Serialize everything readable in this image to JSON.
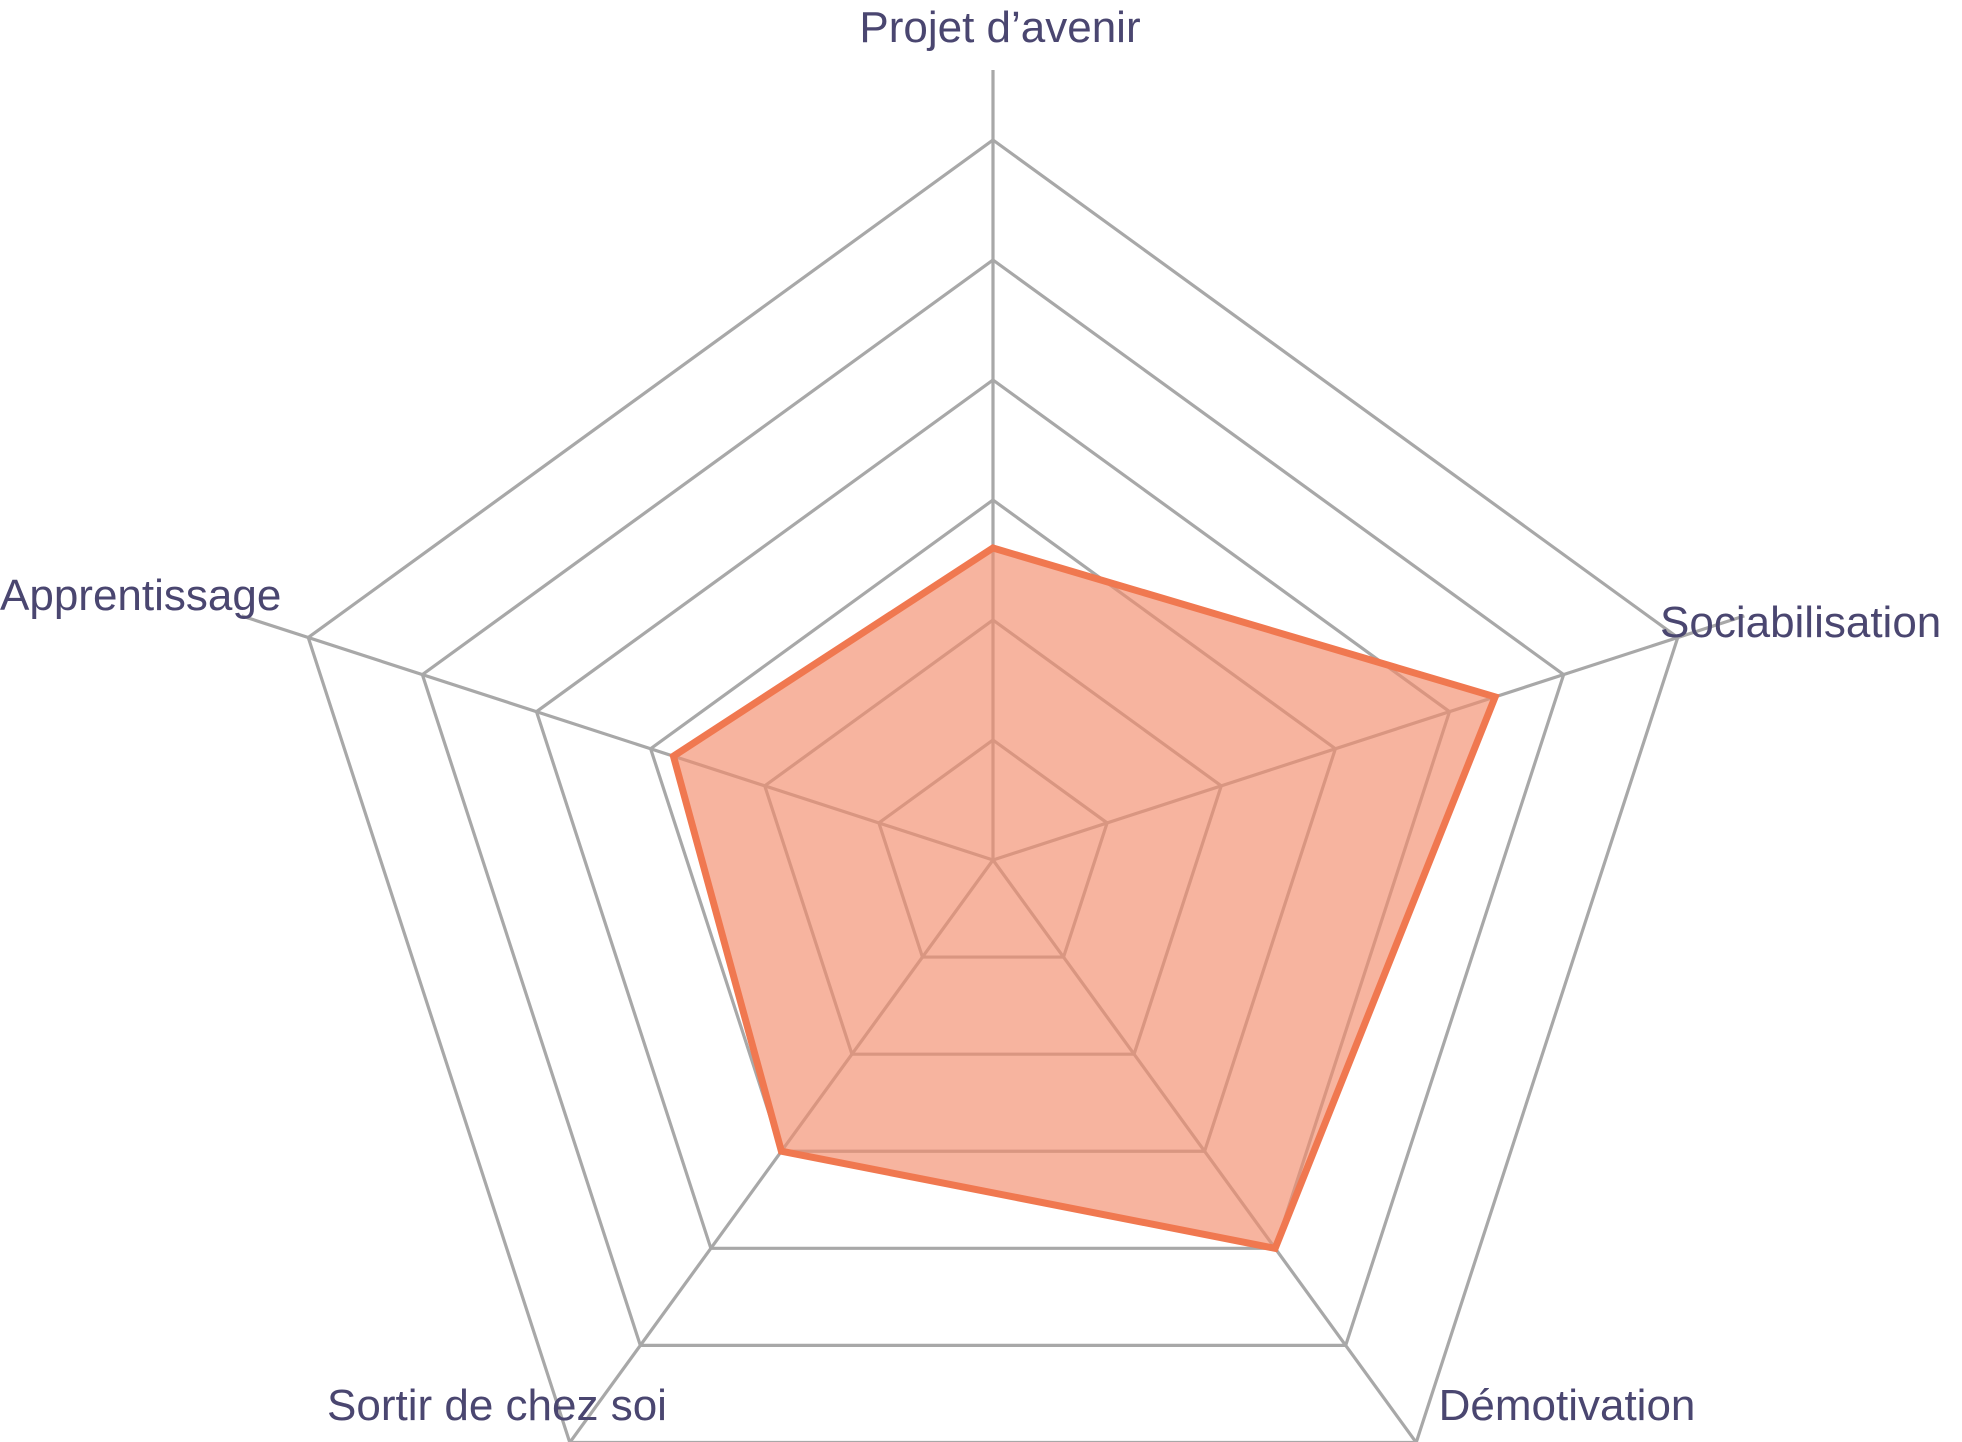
{
  "chart_data": {
    "type": "radar",
    "title": "",
    "axes": [
      "Projet d’avenir",
      "Sociabilisation",
      "Démotivation",
      "Sortir de chez soi",
      "Apprentissage"
    ],
    "rmax": 6,
    "grid_rings": 6,
    "grid": true,
    "legend": "none",
    "series": [
      {
        "values": [
          2.6,
          4.4,
          4.0,
          3.0,
          2.8
        ],
        "color": "#f07850",
        "fill": "#f28c6c"
      }
    ]
  }
}
